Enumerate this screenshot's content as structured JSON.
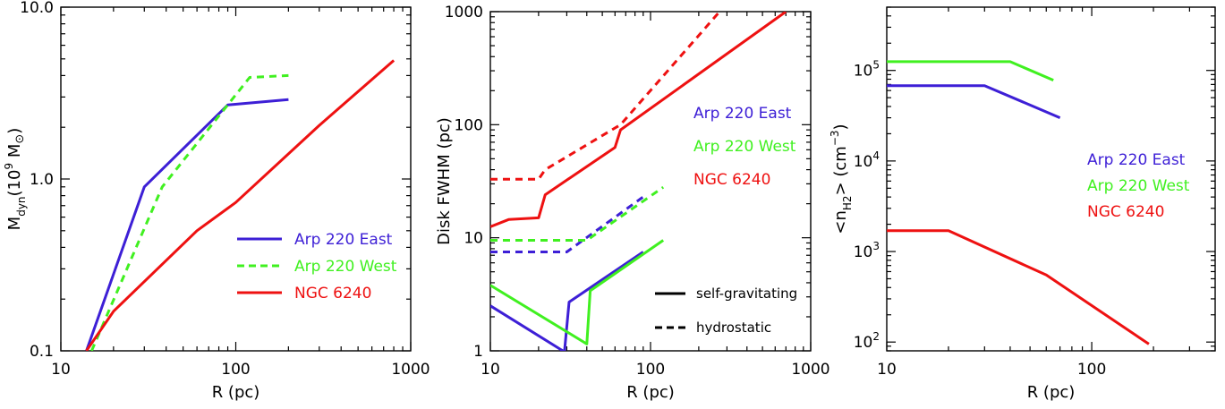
{
  "chart_data": [
    {
      "type": "line",
      "xlabel": "R (pc)",
      "ylabel_main": "M",
      "ylabel_sub": "dyn",
      "ylabel_tail": "(10",
      "ylabel_exp": "9",
      "ylabel_unit": " M",
      "ylabel_sym": "⊙",
      "ylabel_close": ")",
      "xscale": "log",
      "yscale": "log",
      "xlim": [
        10,
        1000
      ],
      "ylim": [
        0.1,
        10
      ],
      "xticks": [
        {
          "v": 10,
          "label": "10"
        },
        {
          "v": 100,
          "label": "100"
        },
        {
          "v": 1000,
          "label": "1000"
        }
      ],
      "yticks": [
        {
          "v": 0.1,
          "label": "0.1"
        },
        {
          "v": 1,
          "label": "1.0"
        },
        {
          "v": 10,
          "label": "10.0"
        }
      ],
      "legend": "lower-right",
      "series": [
        {
          "name": "Arp 220 East",
          "color": "#3d1fd6",
          "dash": false,
          "points": [
            [
              14,
              0.1
            ],
            [
              30,
              0.9
            ],
            [
              90,
              2.7
            ],
            [
              200,
              2.9
            ]
          ]
        },
        {
          "name": "Arp 220 West",
          "color": "#40f020",
          "dash": true,
          "points": [
            [
              15,
              0.1
            ],
            [
              38,
              0.9
            ],
            [
              120,
              3.9
            ],
            [
              200,
              4.0
            ]
          ]
        },
        {
          "name": "NGC 6240",
          "color": "#ee1111",
          "dash": false,
          "points": [
            [
              14,
              0.1
            ],
            [
              20,
              0.17
            ],
            [
              60,
              0.5
            ],
            [
              100,
              0.73
            ],
            [
              300,
              2.05
            ],
            [
              800,
              4.9
            ]
          ]
        }
      ]
    },
    {
      "type": "line",
      "xlabel": "R (pc)",
      "ylabel": "Disk FWHM (pc)",
      "xscale": "log",
      "yscale": "log",
      "xlim": [
        10,
        1000
      ],
      "ylim": [
        1,
        1000
      ],
      "xticks": [
        {
          "v": 10,
          "label": "10"
        },
        {
          "v": 100,
          "label": "100"
        },
        {
          "v": 1000,
          "label": "1000"
        }
      ],
      "yticks": [
        {
          "v": 1,
          "label": "1"
        },
        {
          "v": 10,
          "label": "10"
        },
        {
          "v": 100,
          "label": "100"
        },
        {
          "v": 1000,
          "label": "1000"
        }
      ],
      "legend": "right",
      "style_legend": [
        {
          "label": "self-gravitating",
          "dash": false
        },
        {
          "label": "hydrostatic",
          "dash": true
        }
      ],
      "series": [
        {
          "name": "Arp 220 East",
          "color": "#3d1fd6",
          "dash": false,
          "points": [
            [
              10,
              2.5
            ],
            [
              29,
              0.98
            ],
            [
              31,
              2.7
            ],
            [
              90,
              7.5
            ]
          ]
        },
        {
          "name": "Arp 220 East",
          "color": "#3d1fd6",
          "dash": true,
          "points": [
            [
              10,
              7.5
            ],
            [
              30,
              7.5
            ],
            [
              90,
              23
            ]
          ]
        },
        {
          "name": "Arp 220 West",
          "color": "#40f020",
          "dash": false,
          "points": [
            [
              10,
              3.8
            ],
            [
              40,
              1.15
            ],
            [
              42,
              3.4
            ],
            [
              120,
              9.5
            ]
          ]
        },
        {
          "name": "Arp 220 West",
          "color": "#40f020",
          "dash": true,
          "points": [
            [
              10,
              9.5
            ],
            [
              40,
              9.5
            ],
            [
              120,
              28
            ]
          ]
        },
        {
          "name": "NGC 6240",
          "color": "#ee1111",
          "dash": false,
          "points": [
            [
              10,
              12.5
            ],
            [
              13,
              14.5
            ],
            [
              20,
              15
            ],
            [
              22,
              24
            ],
            [
              60,
              63
            ],
            [
              65,
              90
            ],
            [
              700,
              1000
            ]
          ]
        },
        {
          "name": "NGC 6240",
          "color": "#ee1111",
          "dash": true,
          "points": [
            [
              10,
              33
            ],
            [
              20,
              33
            ],
            [
              22,
              40
            ],
            [
              65,
              100
            ],
            [
              270,
              1000
            ]
          ]
        }
      ]
    },
    {
      "type": "line",
      "xlabel": "R (pc)",
      "ylabel_open": "<n",
      "ylabel_sub": "H2",
      "ylabel_mid": "> (cm",
      "ylabel_exp": "−3",
      "ylabel_close": ")",
      "xscale": "log",
      "yscale": "log",
      "xlim": [
        10,
        400
      ],
      "ylim": [
        80,
        500000
      ],
      "xticks": [
        {
          "v": 10,
          "label": "10"
        },
        {
          "v": 100,
          "label": "100"
        }
      ],
      "yticks": [
        {
          "v": 100,
          "base": "10",
          "exp": "2"
        },
        {
          "v": 1000,
          "base": "10",
          "exp": "3"
        },
        {
          "v": 10000,
          "base": "10",
          "exp": "4"
        },
        {
          "v": 100000,
          "base": "10",
          "exp": "5"
        }
      ],
      "legend": "right",
      "series": [
        {
          "name": "Arp 220 East",
          "color": "#3d1fd6",
          "dash": false,
          "points": [
            [
              10,
              68000
            ],
            [
              30,
              68000
            ],
            [
              70,
              30000
            ]
          ]
        },
        {
          "name": "Arp 220 West",
          "color": "#40f020",
          "dash": false,
          "points": [
            [
              10,
              125000
            ],
            [
              40,
              125000
            ],
            [
              65,
              78000
            ]
          ]
        },
        {
          "name": "NGC 6240",
          "color": "#ee1111",
          "dash": false,
          "points": [
            [
              10,
              1700
            ],
            [
              20,
              1700
            ],
            [
              60,
              550
            ],
            [
              190,
              95
            ]
          ]
        }
      ]
    }
  ]
}
